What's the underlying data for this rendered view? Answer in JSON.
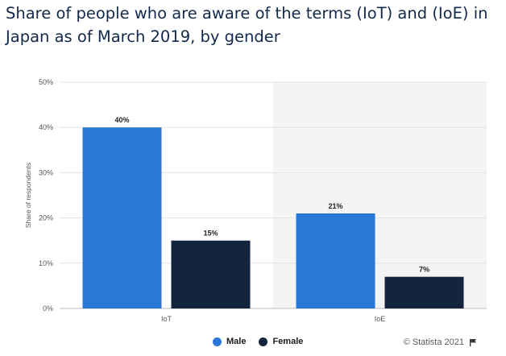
{
  "title": "Share of people who are aware of the terms (IoT) and (IoE) in Japan as of March 2019, by gender",
  "credit": "© Statista 2021",
  "colors": {
    "Male": "#2a78d6",
    "Female": "#13253e",
    "shade": "#f4f4f5",
    "grid": "#e2e2e2"
  },
  "chart_data": {
    "type": "bar",
    "categories": [
      "IoT",
      "IoE"
    ],
    "series": [
      {
        "name": "Male",
        "values": [
          40,
          21
        ]
      },
      {
        "name": "Female",
        "values": [
          15,
          7
        ]
      }
    ],
    "ylabel": "Share of respondents",
    "xlabel": "",
    "ylim": [
      0,
      50
    ],
    "yticks": [
      "0%",
      "10%",
      "20%",
      "30%",
      "40%",
      "50%"
    ],
    "data_labels": [
      [
        "40%",
        "21%"
      ],
      [
        "15%",
        "7%"
      ]
    ],
    "legend": "bottom-center",
    "grid": true
  }
}
